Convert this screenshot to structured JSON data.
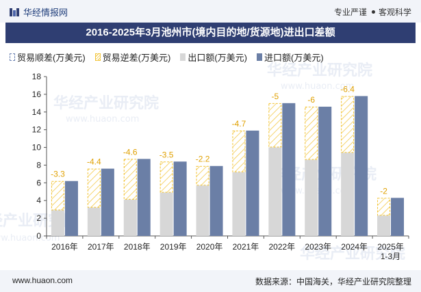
{
  "header": {
    "brand": "华经情报网",
    "tagline_part1": "专业严谨",
    "tagline_part2": "客观科学",
    "title": "2016-2025年3月池州市(境内目的地/货源地)进出口差额"
  },
  "legend": {
    "surplus": "贸易顺差(万美元)",
    "deficit": "贸易逆差(万美元)",
    "export": "出口额(万美元)",
    "import": "进口额(万美元)"
  },
  "watermark": {
    "text": "华经产业研究院",
    "url": "www.huaon.com"
  },
  "colors": {
    "title_bg": "#2f3e72",
    "export": "#d7d7d7",
    "import": "#6b7fa6",
    "deficit": "#f2c230",
    "label": "#e0a000"
  },
  "chart_data": {
    "type": "bar",
    "categories": [
      "2016年",
      "2017年",
      "2018年",
      "2019年",
      "2020年",
      "2021年",
      "2022年",
      "2023年",
      "2024年",
      "2025年\n1-3月"
    ],
    "series": [
      {
        "name": "出口额(万美元)",
        "values": [
          2.9,
          3.2,
          4.1,
          4.9,
          5.7,
          7.2,
          10.0,
          8.6,
          9.4,
          2.3
        ]
      },
      {
        "name": "进口额(万美元)",
        "values": [
          6.2,
          7.6,
          8.7,
          8.4,
          7.9,
          11.9,
          15.0,
          14.6,
          15.8,
          4.3
        ]
      }
    ],
    "balance_labels": [
      "-3.3",
      "-4.4",
      "-4.6",
      "-3.5",
      "-2.2",
      "-4.7",
      "-5",
      "-6",
      "-6.4",
      "-2"
    ],
    "ylim": [
      0,
      18
    ],
    "yticks": [
      0,
      2,
      4,
      6,
      8,
      10,
      12,
      14,
      16,
      18
    ]
  },
  "footer": {
    "url": "www.huaon.com",
    "source": "数据来源：中国海关，华经产业研究院整理"
  }
}
